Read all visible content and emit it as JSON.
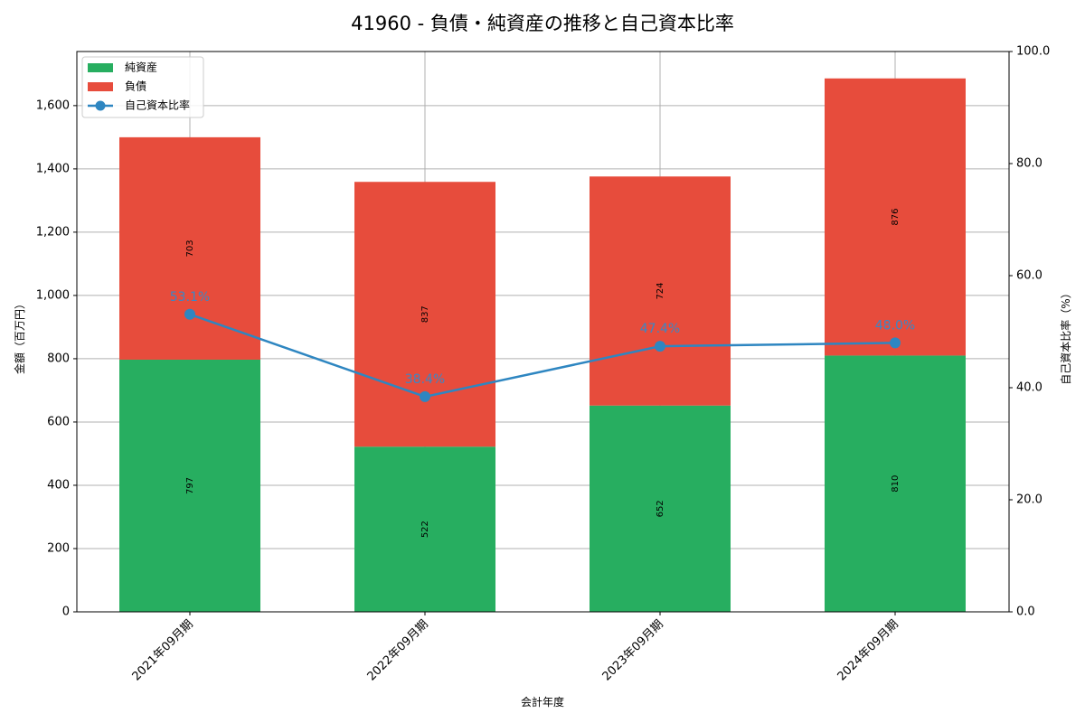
{
  "title": "41960 - 負債・純資産の推移と自己資本比率",
  "chart_data": {
    "type": "bar",
    "stacked": true,
    "title": "41960 - 負債・純資産の推移と自己資本比率",
    "xlabel": "会計年度",
    "ylabel": "金額（百万円）",
    "y2label": "自己資本比率（%）",
    "categories": [
      "2021年09月期",
      "2022年09月期",
      "2023年09月期",
      "2024年09月期"
    ],
    "series": [
      {
        "name": "純資産",
        "type": "bar",
        "color": "#27ae60",
        "values": [
          797,
          522,
          652,
          810
        ]
      },
      {
        "name": "負債",
        "type": "bar",
        "color": "#e74c3c",
        "values": [
          703,
          837,
          724,
          876
        ]
      },
      {
        "name": "自己資本比率",
        "type": "line",
        "axis": "right",
        "color": "#2e86c1",
        "values": [
          53.1,
          38.4,
          47.4,
          48.0
        ],
        "labels": [
          "53.1%",
          "38.4%",
          "47.4%",
          "48.0%"
        ]
      }
    ],
    "ylim": [
      0,
      1771
    ],
    "y2lim": [
      0,
      100
    ],
    "yticks": [
      "0",
      "200",
      "400",
      "600",
      "800",
      "1,000",
      "1,200",
      "1,400",
      "1,600"
    ],
    "y2ticks": [
      "0.0",
      "20.0",
      "40.0",
      "60.0",
      "80.0",
      "100.0"
    ],
    "grid": true,
    "legend_position": "upper left"
  },
  "legend": {
    "items": [
      {
        "label": "純資産",
        "color": "#27ae60",
        "kind": "patch"
      },
      {
        "label": "負債",
        "color": "#e74c3c",
        "kind": "patch"
      },
      {
        "label": "自己資本比率",
        "color": "#2e86c1",
        "kind": "line-marker"
      }
    ]
  }
}
